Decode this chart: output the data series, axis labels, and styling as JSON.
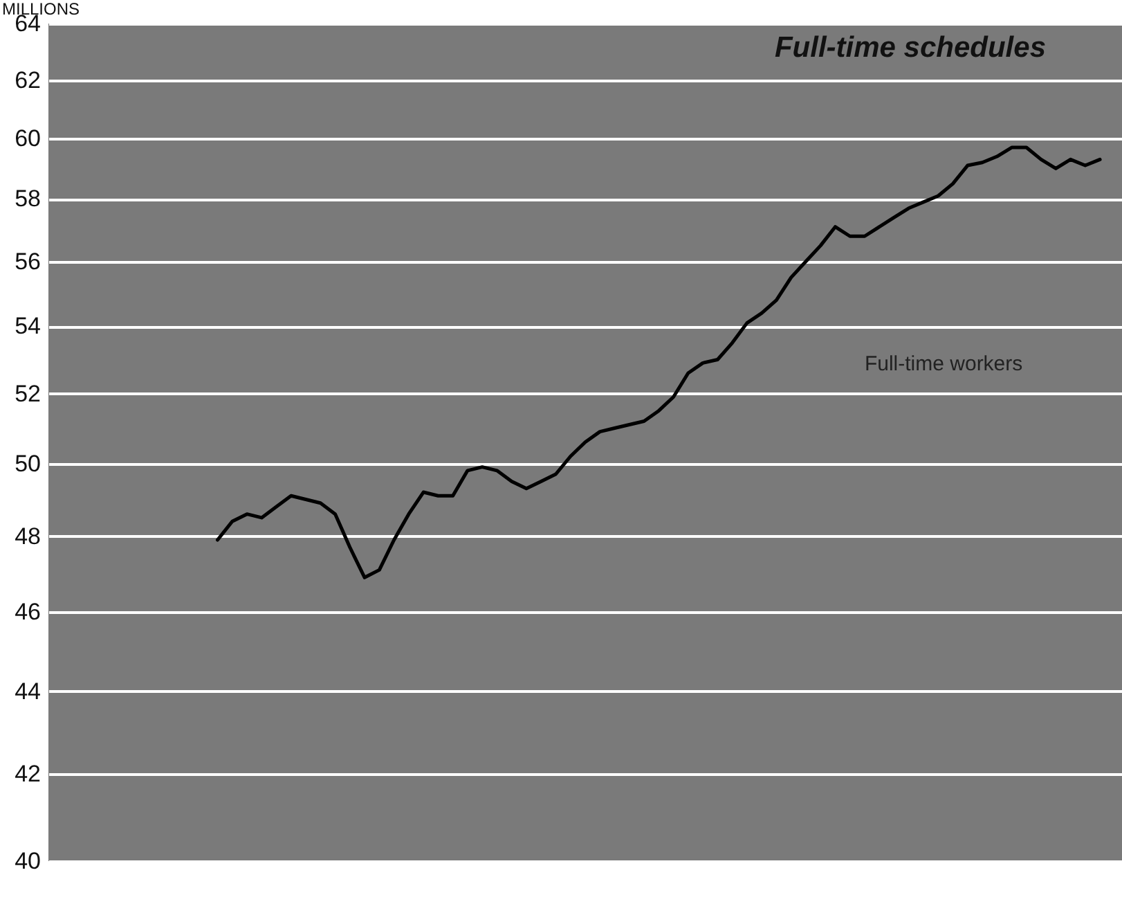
{
  "chart_data": {
    "type": "line",
    "title": "Full-time schedules",
    "ylabel": "MILLIONS",
    "categories": [
      null,
      null,
      null,
      null,
      null,
      null,
      null,
      null,
      null,
      null,
      null,
      null,
      null,
      null,
      null,
      null,
      null,
      null,
      null,
      null,
      null,
      null,
      null,
      null,
      null,
      null,
      null,
      null,
      null,
      null,
      null,
      null,
      null,
      null,
      null,
      null,
      null,
      null,
      null,
      null,
      null,
      null,
      null,
      null,
      null,
      null,
      null,
      null,
      null,
      null,
      null,
      null,
      null,
      null,
      null,
      null,
      null,
      null,
      null,
      null,
      null,
      null,
      null,
      null,
      null,
      null,
      null,
      null,
      null,
      null,
      null,
      null,
      null
    ],
    "series": [
      {
        "name": "Full-time workers",
        "color": "#000000",
        "values": [
          null,
          null,
          null,
          null,
          null,
          null,
          null,
          null,
          null,
          null,
          null,
          47.9,
          48.4,
          48.6,
          48.5,
          48.8,
          49.1,
          49.0,
          48.9,
          48.6,
          47.7,
          46.9,
          47.1,
          47.9,
          48.6,
          49.2,
          49.1,
          49.1,
          49.8,
          49.9,
          49.8,
          49.5,
          49.3,
          49.5,
          49.7,
          50.2,
          50.6,
          50.9,
          51.0,
          51.1,
          51.2,
          51.5,
          51.9,
          52.6,
          52.9,
          53.0,
          53.5,
          54.1,
          54.4,
          54.8,
          55.5,
          56.0,
          56.5,
          57.1,
          56.8,
          56.8,
          57.1,
          57.4,
          57.7,
          57.9,
          58.1,
          58.5,
          59.1,
          59.2,
          59.4,
          59.7,
          59.7,
          59.3,
          59.0,
          59.3,
          59.1,
          59.3,
          null
        ]
      }
    ],
    "ylim": [
      40,
      64
    ],
    "yticks": [
      40,
      42,
      44,
      46,
      48,
      50,
      52,
      54,
      56,
      58,
      60,
      62,
      64
    ],
    "log": "y",
    "grid": "y",
    "tick_labels": "y",
    "line_style": "solid",
    "marker": "none"
  }
}
